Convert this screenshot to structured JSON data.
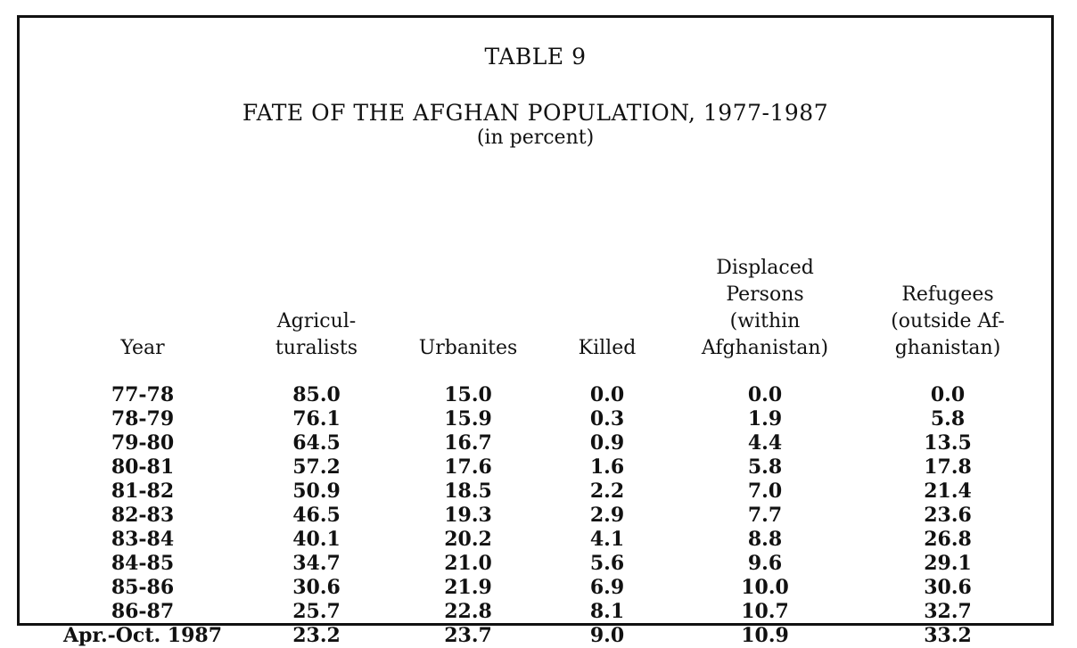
{
  "table": {
    "label": "TABLE 9",
    "title": "FATE OF THE AFGHAN POPULATION, 1977-1987",
    "unit": "(in percent)",
    "headers": [
      "Year",
      "Agricul-\nturalists",
      "Urbanites",
      "Killed",
      "Displaced\nPersons\n(within\nAfghanistan)",
      "Refugees\n(outside Af-\nghanistan)"
    ],
    "rows": [
      [
        "77-78",
        "85.0",
        "15.0",
        "0.0",
        "0.0",
        "0.0"
      ],
      [
        "78-79",
        "76.1",
        "15.9",
        "0.3",
        "1.9",
        "5.8"
      ],
      [
        "79-80",
        "64.5",
        "16.7",
        "0.9",
        "4.4",
        "13.5"
      ],
      [
        "80-81",
        "57.2",
        "17.6",
        "1.6",
        "5.8",
        "17.8"
      ],
      [
        "81-82",
        "50.9",
        "18.5",
        "2.2",
        "7.0",
        "21.4"
      ],
      [
        "82-83",
        "46.5",
        "19.3",
        "2.9",
        "7.7",
        "23.6"
      ],
      [
        "83-84",
        "40.1",
        "20.2",
        "4.1",
        "8.8",
        "26.8"
      ],
      [
        "84-85",
        "34.7",
        "21.0",
        "5.6",
        "9.6",
        "29.1"
      ],
      [
        "85-86",
        "30.6",
        "21.9",
        "6.9",
        "10.0",
        "30.6"
      ],
      [
        "86-87",
        "25.7",
        "22.8",
        "8.1",
        "10.7",
        "32.7"
      ],
      [
        "Apr.-Oct. 1987",
        "23.2",
        "23.7",
        "9.0",
        "10.9",
        "33.2"
      ]
    ]
  }
}
